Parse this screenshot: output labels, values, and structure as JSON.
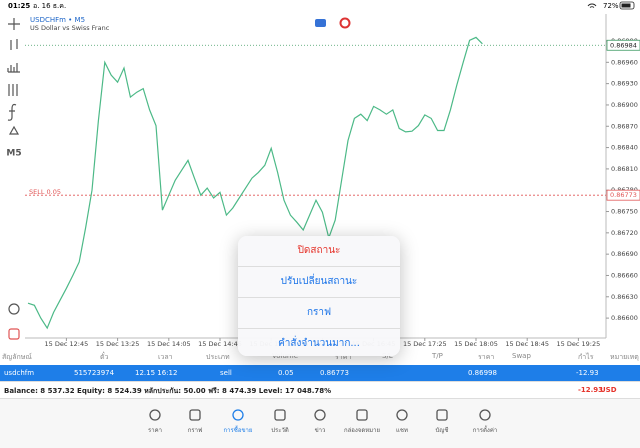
{
  "status_bar": {
    "time": "01:25",
    "date": "อ. 16 ธ.ค.",
    "battery": "72%"
  },
  "toolbar": {
    "timeframe": "M5"
  },
  "chart_data": {
    "type": "line",
    "title": "USDCHFm • M5",
    "subtitle": "US Dollar vs Swiss Franc",
    "color": "#4cb987",
    "categories": [
      null,
      null,
      null,
      null,
      null,
      null,
      "15 Dec 12:45",
      null,
      null,
      null,
      null,
      null,
      null,
      null,
      "15 Dec 13:25",
      null,
      null,
      null,
      null,
      null,
      null,
      null,
      "15 Dec 14:05",
      null,
      null,
      null,
      null,
      null,
      null,
      null,
      "15 Dec 14:45",
      null,
      null,
      null,
      null,
      null,
      null,
      null,
      "15 Dec 15:25",
      null,
      null,
      null,
      null,
      null,
      null,
      null,
      "15 Dec 16:05",
      null,
      null,
      null,
      null,
      null,
      null,
      null,
      "15 Dec 16:45",
      null,
      null,
      null,
      null,
      null,
      null,
      null,
      "15 Dec 17:25",
      null,
      null,
      null,
      null,
      null,
      null,
      null,
      "15 Dec 18:05",
      null,
      null,
      null,
      null,
      null,
      null,
      null,
      "15 Dec 18:45",
      null,
      null,
      null,
      null,
      null,
      null,
      null,
      "15 Dec 19:25",
      null,
      null,
      null,
      null
    ],
    "values": [
      0.86621,
      0.86618,
      0.866,
      0.86586,
      0.86608,
      0.86625,
      0.86642,
      0.8666,
      0.86679,
      0.86727,
      0.8678,
      0.86878,
      0.8696,
      0.86942,
      0.86932,
      0.86952,
      0.86911,
      0.86918,
      0.86923,
      0.86893,
      0.86871,
      0.86752,
      0.86773,
      0.86794,
      0.86808,
      0.86822,
      0.86797,
      0.86773,
      0.86783,
      0.86769,
      0.86777,
      0.86745,
      0.86755,
      0.86769,
      0.86783,
      0.86797,
      0.86805,
      0.86815,
      0.86839,
      0.86805,
      0.86766,
      0.86745,
      0.86735,
      0.86724,
      0.86745,
      0.86766,
      0.86749,
      0.86713,
      0.86738,
      0.86794,
      0.8685,
      0.86881,
      0.86887,
      0.86878,
      0.86898,
      0.86893,
      0.86887,
      0.86893,
      0.86867,
      0.86862,
      0.86863,
      0.86871,
      0.86886,
      0.86881,
      0.86864,
      0.86864,
      0.86893,
      0.86928,
      0.8696,
      0.86991,
      0.86995,
      0.86986,
      null,
      null,
      null,
      null,
      null,
      null,
      null,
      null,
      null,
      null,
      null,
      null,
      null,
      null,
      null,
      null,
      null,
      null,
      null
    ],
    "ylim": [
      0.86572,
      0.87028
    ],
    "yticks": [
      {
        "value": 0.866,
        "label": "0.86600"
      },
      {
        "value": 0.8663,
        "label": "0.86630"
      },
      {
        "value": 0.8666,
        "label": "0.86660"
      },
      {
        "value": 0.8669,
        "label": "0.86690"
      },
      {
        "value": 0.8672,
        "label": "0.86720"
      },
      {
        "value": 0.8675,
        "label": "0.86750"
      },
      {
        "value": 0.8678,
        "label": "0.86780"
      },
      {
        "value": 0.8681,
        "label": "0.86810"
      },
      {
        "value": 0.8684,
        "label": "0.86840"
      },
      {
        "value": 0.8687,
        "label": "0.86870"
      },
      {
        "value": 0.869,
        "label": "0.86900"
      },
      {
        "value": 0.8693,
        "label": "0.86930"
      },
      {
        "value": 0.8696,
        "label": "0.86960"
      },
      {
        "value": 0.8699,
        "label": "0.86990"
      }
    ],
    "bid_line": {
      "value": 0.86984,
      "color": "#3d9b62"
    },
    "order_line": {
      "label": "SELL 0.05",
      "value": 0.86773,
      "color": "#e05555"
    }
  },
  "context_menu": {
    "items": [
      "ปิดสถานะ",
      "ปรับเปลี่ยนสถานะ",
      "กราฟ",
      "คำสั่งจำนวนมาก..."
    ]
  },
  "table": {
    "header": [
      "สัญลักษณ์",
      "ตั๋ว",
      "เวลา",
      "ประเภท",
      "Volume",
      "ราคา",
      "S/L",
      "T/P",
      "ราคา",
      "Swap",
      "กำไร",
      "หมายเหตุ"
    ],
    "row": {
      "symbol": "usdchfm",
      "ticket": "515723974",
      "time": "12.15 16:12",
      "type": "sell",
      "volume": "0.05",
      "price": "0.86773",
      "current_price": "0.86998",
      "profit": "-12.93"
    }
  },
  "summary": {
    "text": "Balance: 8 537.32 Equity: 8 524.39 หลักประกัน: 50.00 ฟรี: 8 474.39 Level: 17 048.78%",
    "total": "-12.93",
    "currency": "USD"
  },
  "tabs": [
    "ราคา",
    "กราฟ",
    "การซื้อขาย",
    "ประวัติ",
    "ข่าว",
    "กล่องจดหมาย",
    "แชท",
    "บัญชี",
    "การตั้งค่า"
  ]
}
